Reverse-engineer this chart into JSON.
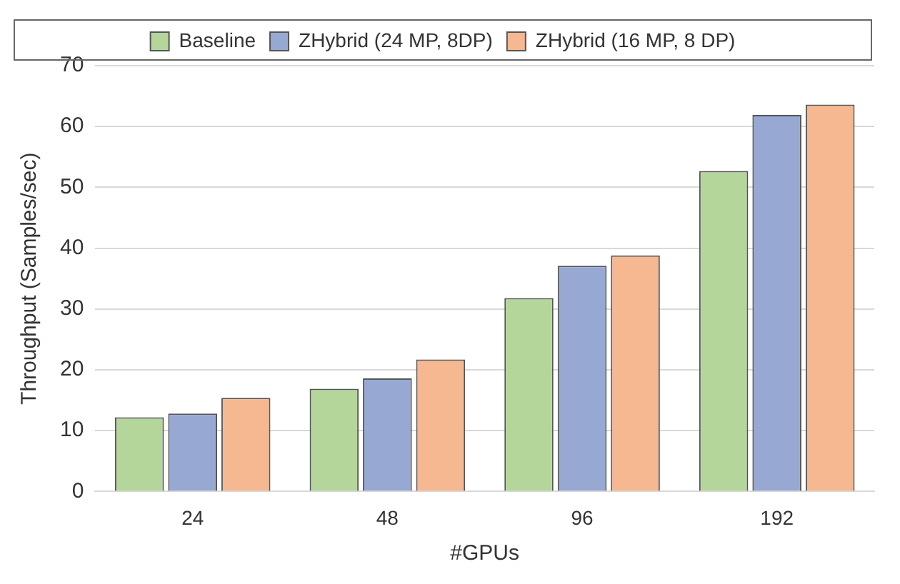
{
  "chart_data": {
    "type": "bar",
    "xlabel": "#GPUs",
    "ylabel": "Throughput (Samples/sec)",
    "categories": [
      "24",
      "48",
      "96",
      "192"
    ],
    "series": [
      {
        "name": "Baseline",
        "color": "#b5d69b",
        "values": [
          12.2,
          16.9,
          31.8,
          52.7
        ]
      },
      {
        "name": "ZHybrid (24 MP, 8DP)",
        "color": "#97a9d3",
        "values": [
          12.8,
          18.6,
          37.1,
          61.9
        ]
      },
      {
        "name": "ZHybrid (16 MP, 8 DP)",
        "color": "#f5b890",
        "values": [
          15.4,
          21.7,
          38.8,
          63.6
        ]
      }
    ],
    "ylim": [
      0,
      70
    ],
    "yticks": [
      0,
      10,
      20,
      30,
      40,
      50,
      60,
      70
    ],
    "grid": "y",
    "legend": "top"
  }
}
